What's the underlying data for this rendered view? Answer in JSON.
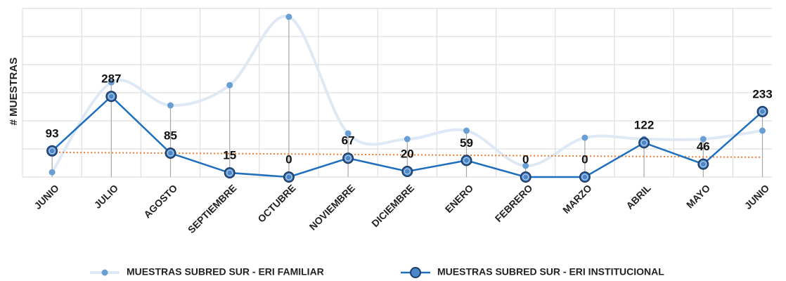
{
  "chart_data": {
    "type": "line",
    "y_axis_label": "# MUESTRAS",
    "categories": [
      "JUNIO",
      "JULIO",
      "AGOSTO",
      "SEPTIEMBRE",
      "OCTUBRE",
      "NOVIEMBRE",
      "DICIEMBRE",
      "ENERO",
      "FEBRERO",
      "MARZO",
      "ABRIL",
      "MAYO",
      "JUNIO"
    ],
    "series": [
      {
        "name": "MUESTRAS SUBRED SUR - ERI FAMILIAR",
        "color": "#6a9fd4",
        "smooth": true,
        "values": [
          17,
          337,
          255,
          327,
          570,
          155,
          135,
          165,
          40,
          140,
          135,
          135,
          165
        ]
      },
      {
        "name": "MUESTRAS SUBRED SUR - ERI INSTITUCIONAL",
        "color": "#1f6fbf",
        "data_labels": true,
        "trendline_color": "#ed7d31",
        "values": [
          93,
          287,
          85,
          15,
          0,
          67,
          20,
          59,
          0,
          0,
          122,
          46,
          233
        ]
      }
    ],
    "ylim": [
      0,
      600
    ],
    "yticks": [
      0,
      100,
      200,
      300,
      400,
      500,
      600
    ],
    "grid": true,
    "drop_lines": true,
    "legend": "bottom"
  }
}
